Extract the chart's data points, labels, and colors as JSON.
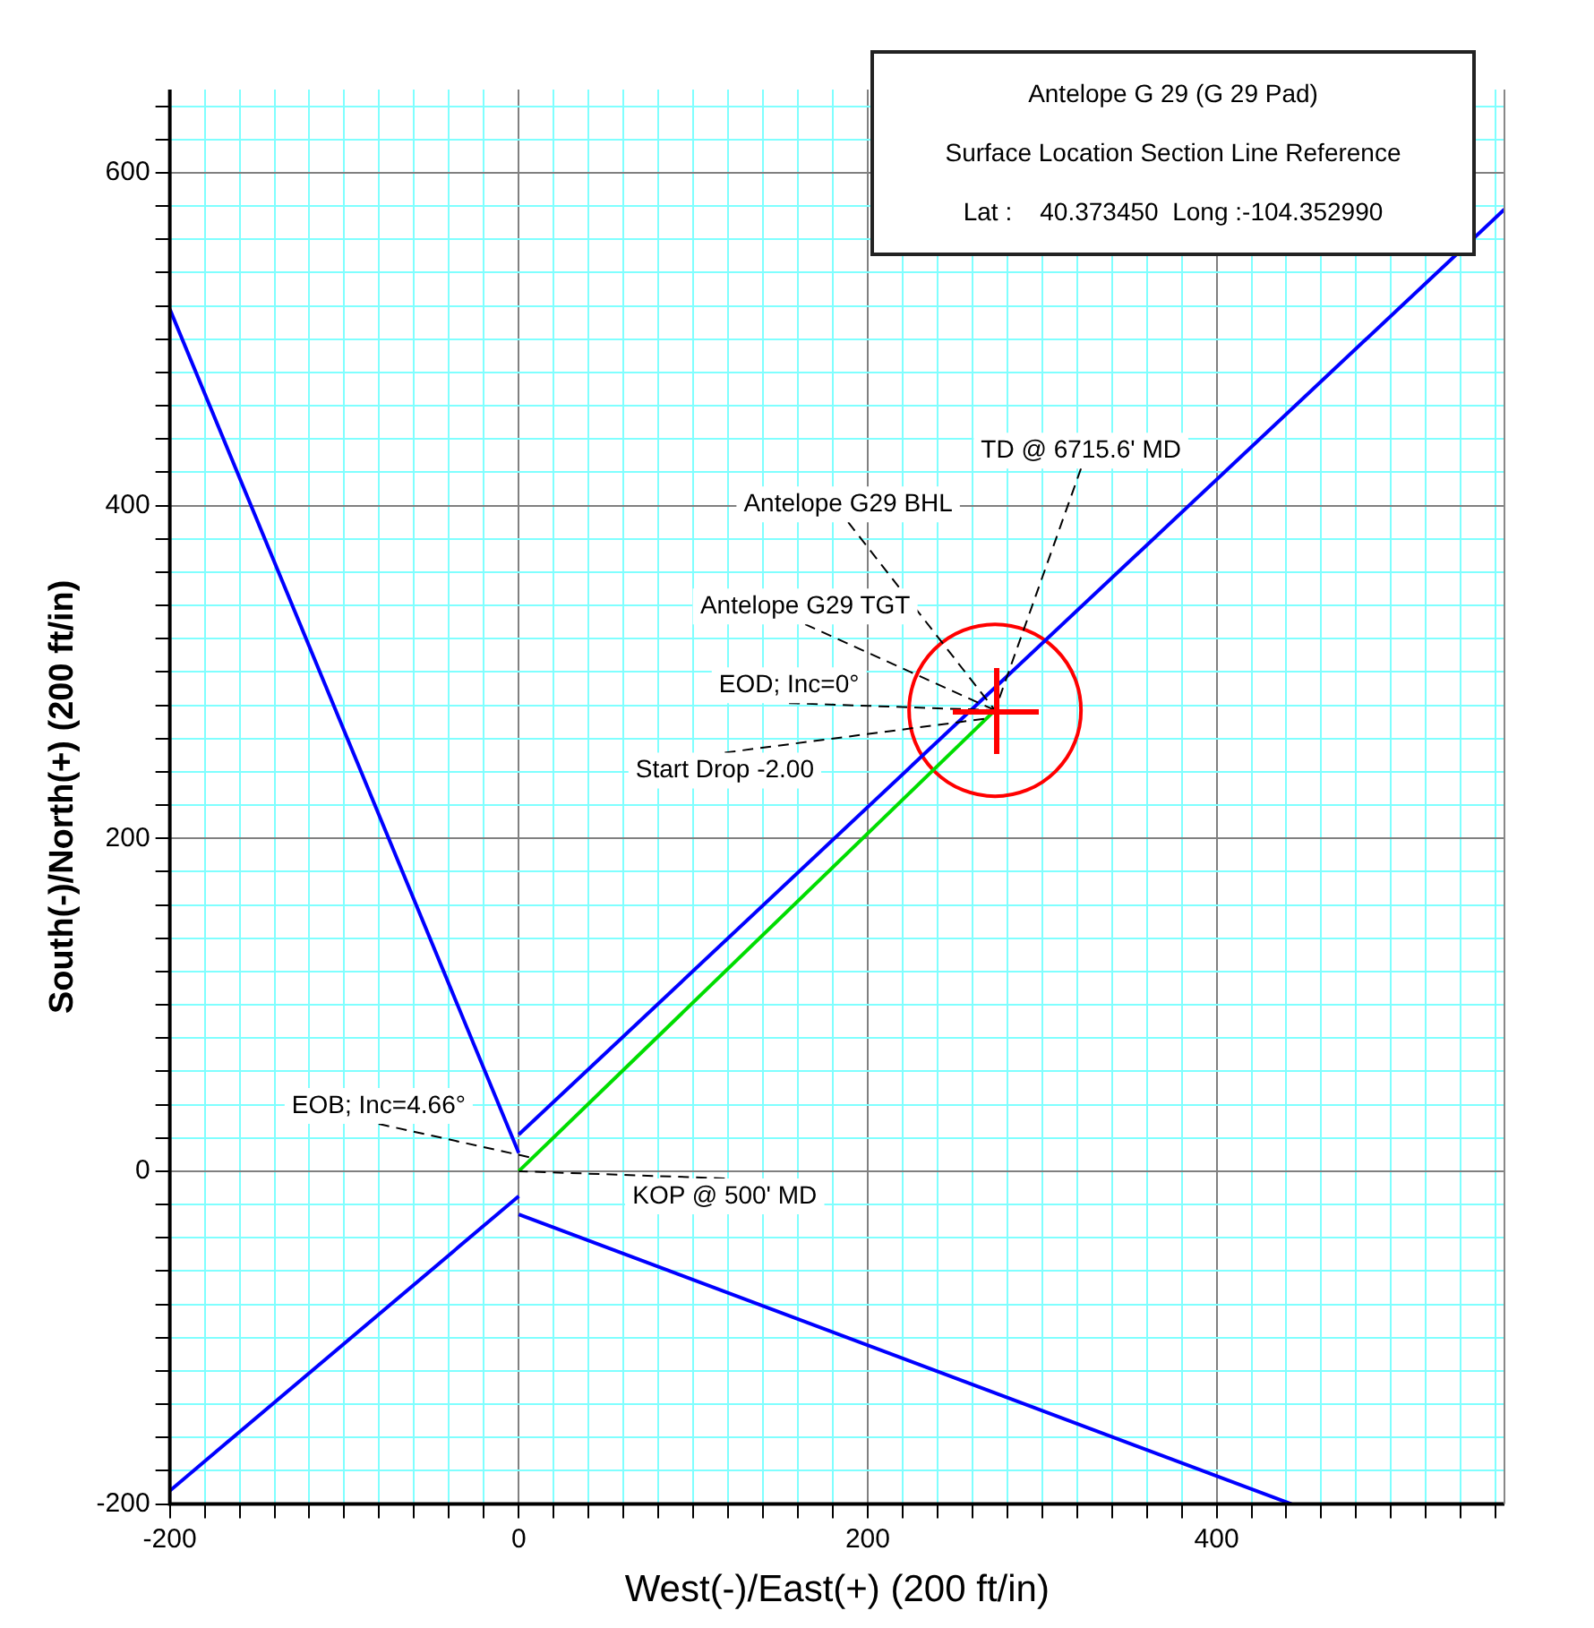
{
  "chart_data": {
    "type": "line",
    "xlabel": "West(-)/East(+) (200 ft/in)",
    "ylabel": "South(-)/North(+) (200 ft/in)",
    "xlim": [
      -200,
      565
    ],
    "ylim": [
      -200,
      650
    ],
    "xticks": [
      -200,
      {
        "value": -180,
        "label": null
      },
      {
        "value": -160,
        "label": null
      },
      {
        "value": -140,
        "label": null
      },
      {
        "value": -120,
        "label": null
      },
      {
        "value": -100,
        "label": null
      },
      {
        "value": -80,
        "label": null
      },
      {
        "value": -60,
        "label": null
      },
      {
        "value": -40,
        "label": null
      },
      {
        "value": -20,
        "label": null
      },
      0,
      {
        "value": 20,
        "label": null
      },
      {
        "value": 40,
        "label": null
      },
      {
        "value": 60,
        "label": null
      },
      {
        "value": 80,
        "label": null
      },
      {
        "value": 100,
        "label": null
      },
      {
        "value": 120,
        "label": null
      },
      {
        "value": 140,
        "label": null
      },
      {
        "value": 160,
        "label": null
      },
      {
        "value": 180,
        "label": null
      },
      200,
      {
        "value": 220,
        "label": null
      },
      {
        "value": 240,
        "label": null
      },
      {
        "value": 260,
        "label": null
      },
      {
        "value": 280,
        "label": null
      },
      {
        "value": 300,
        "label": null
      },
      {
        "value": 320,
        "label": null
      },
      {
        "value": 340,
        "label": null
      },
      {
        "value": 360,
        "label": null
      },
      {
        "value": 380,
        "label": null
      },
      400,
      {
        "value": 420,
        "label": null
      },
      {
        "value": 440,
        "label": null
      },
      {
        "value": 460,
        "label": null
      },
      {
        "value": 480,
        "label": null
      },
      {
        "value": 500,
        "label": null
      },
      {
        "value": 520,
        "label": null
      },
      {
        "value": 540,
        "label": null
      },
      {
        "value": 560,
        "label": null
      }
    ],
    "yticks": [
      -200,
      {
        "value": -180,
        "label": null
      },
      {
        "value": -160,
        "label": null
      },
      {
        "value": -140,
        "label": null
      },
      {
        "value": -120,
        "label": null
      },
      {
        "value": -100,
        "label": null
      },
      {
        "value": -80,
        "label": null
      },
      {
        "value": -60,
        "label": null
      },
      {
        "value": -40,
        "label": null
      },
      {
        "value": -20,
        "label": null
      },
      0,
      {
        "value": 20,
        "label": null
      },
      {
        "value": 40,
        "label": null
      },
      {
        "value": 60,
        "label": null
      },
      {
        "value": 80,
        "label": null
      },
      {
        "value": 100,
        "label": null
      },
      {
        "value": 120,
        "label": null
      },
      {
        "value": 140,
        "label": null
      },
      {
        "value": 160,
        "label": null
      },
      {
        "value": 180,
        "label": null
      },
      200,
      {
        "value": 220,
        "label": null
      },
      {
        "value": 240,
        "label": null
      },
      {
        "value": 260,
        "label": null
      },
      {
        "value": 280,
        "label": null
      },
      {
        "value": 300,
        "label": null
      },
      {
        "value": 320,
        "label": null
      },
      {
        "value": 340,
        "label": null
      },
      {
        "value": 360,
        "label": null
      },
      {
        "value": 380,
        "label": null
      },
      400,
      {
        "value": 420,
        "label": null
      },
      {
        "value": 440,
        "label": null
      },
      {
        "value": 460,
        "label": null
      },
      {
        "value": 480,
        "label": null
      },
      {
        "value": 500,
        "label": null
      },
      {
        "value": 520,
        "label": null
      },
      {
        "value": 540,
        "label": null
      },
      {
        "value": 560,
        "label": null
      },
      {
        "value": 580,
        "label": null
      },
      600,
      {
        "value": 620,
        "label": null
      },
      {
        "value": 640,
        "label": null
      }
    ],
    "grid": true,
    "marker": "none",
    "line_style": "solid",
    "series": [
      {
        "color": "#0000ff",
        "x": [
          -200,
          0
        ],
        "values": [
          518,
          11
        ]
      },
      {
        "color": "#0000ff",
        "x": [
          0,
          565
        ],
        "values": [
          22,
          578
        ]
      },
      {
        "color": "#0000ff",
        "x": [
          0,
          -200
        ],
        "values": [
          -15,
          -192
        ]
      },
      {
        "color": "#0000ff",
        "x": [
          0,
          443
        ],
        "values": [
          -26,
          -200
        ]
      },
      {
        "color": "#00dd00",
        "x": [
          0,
          273
        ],
        "values": [
          0,
          277
        ]
      },
      {
        "type": "scatter",
        "marker": "circle",
        "color": "#ff0000",
        "x": [
          273
        ],
        "values": [
          277
        ]
      }
    ],
    "annotations": [
      "Antelope G 29 (G 29 Pad)",
      "Surface Location Section Line Reference",
      "Lat :    40.373450  Long :-104.352990",
      {
        "text": "TD @ 6715.6' MD",
        "x": 273,
        "y": 277
      },
      {
        "text": "Antelope G29 BHL",
        "x": 273,
        "y": 277
      },
      {
        "text": "Antelope G29 TGT",
        "x": 273,
        "y": 277
      },
      {
        "text": "EOD; Inc=0°",
        "x": 273,
        "y": 277
      },
      {
        "text": "Start Drop -2.00",
        "x": 268,
        "y": 272
      },
      {
        "text": "EOB; Inc=4.66°",
        "x": 8,
        "y": 8
      },
      {
        "text": "KOP @ 500' MD",
        "x": 0,
        "y": 0
      }
    ]
  }
}
